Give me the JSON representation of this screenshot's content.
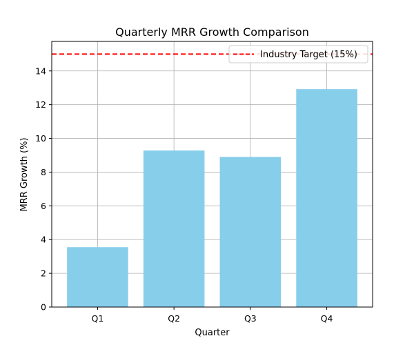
{
  "chart_data": {
    "type": "bar",
    "title": "Quarterly MRR Growth Comparison",
    "xlabel": "Quarter",
    "ylabel": "MRR Growth (%)",
    "categories": [
      "Q1",
      "Q2",
      "Q3",
      "Q4"
    ],
    "values": [
      3.55,
      9.28,
      8.9,
      12.92
    ],
    "ylim": [
      0,
      15.75
    ],
    "yticks": [
      "0",
      "2",
      "4",
      "6",
      "8",
      "10",
      "12",
      "14"
    ],
    "grid": true,
    "bar_color": "#87CEEB",
    "reference_line": {
      "value": 15,
      "label": "Industry Target (15%)",
      "color": "#FF0000",
      "style": "dashed"
    },
    "legend": {
      "position": "top-right"
    }
  }
}
